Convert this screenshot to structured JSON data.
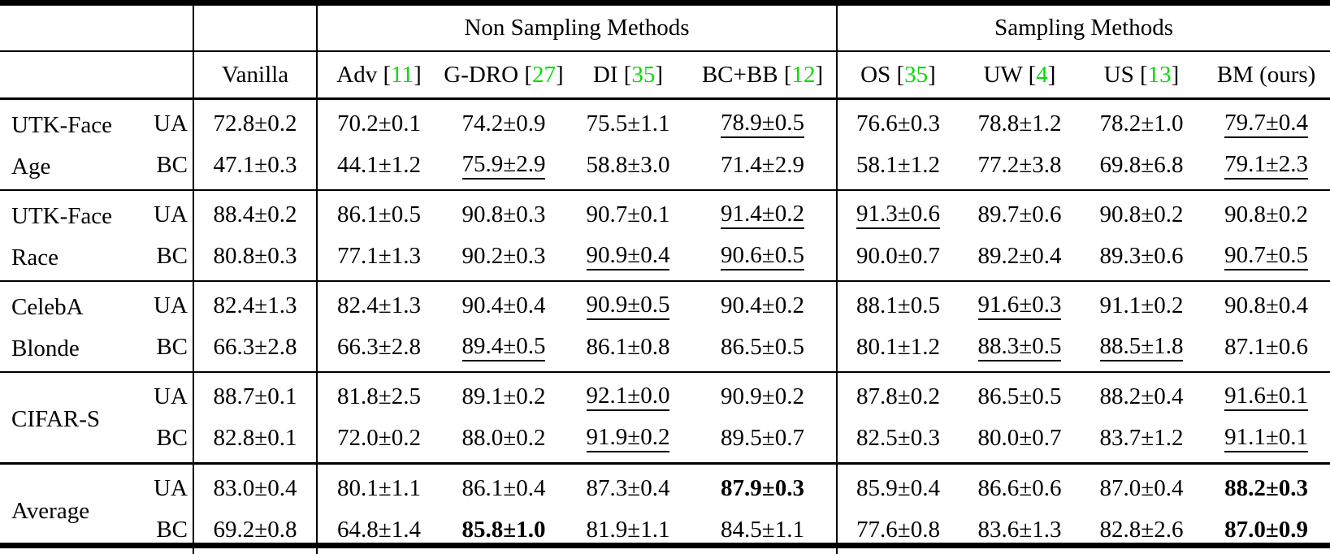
{
  "colors": {
    "citation_green": "#00DD00",
    "text": "#000000",
    "rule": "#000000",
    "background": "#FFFFFF"
  },
  "table": {
    "column_groups": [
      {
        "label": "Non Sampling Methods"
      },
      {
        "label": "Sampling Methods"
      }
    ],
    "metric_note": "flags: u = underlined value, b = bold value",
    "methods": [
      {
        "label": "Vanilla",
        "cite": ""
      },
      {
        "label": "Adv",
        "cite": "11"
      },
      {
        "label": "G-DRO",
        "cite": "27"
      },
      {
        "label": "DI",
        "cite": "35"
      },
      {
        "label": "BC+BB",
        "cite": "12"
      },
      {
        "label": "OS",
        "cite": "35"
      },
      {
        "label": "UW",
        "cite": "4"
      },
      {
        "label": "US",
        "cite": "13"
      },
      {
        "label": "BM (ours)",
        "cite": ""
      }
    ],
    "groups": [
      {
        "label_lines": [
          "UTK-Face",
          "Age"
        ],
        "rows": [
          {
            "metric": "UA",
            "cells": [
              [
                "72.8±0.2",
                ""
              ],
              [
                "70.2±0.1",
                ""
              ],
              [
                "74.2±0.9",
                ""
              ],
              [
                "75.5±1.1",
                ""
              ],
              [
                "78.9±0.5",
                "u"
              ],
              [
                "76.6±0.3",
                ""
              ],
              [
                "78.8±1.2",
                ""
              ],
              [
                "78.2±1.0",
                ""
              ],
              [
                "79.7±0.4",
                "u"
              ]
            ]
          },
          {
            "metric": "BC",
            "cells": [
              [
                "47.1±0.3",
                ""
              ],
              [
                "44.1±1.2",
                ""
              ],
              [
                "75.9±2.9",
                "u"
              ],
              [
                "58.8±3.0",
                ""
              ],
              [
                "71.4±2.9",
                ""
              ],
              [
                "58.1±1.2",
                ""
              ],
              [
                "77.2±3.8",
                ""
              ],
              [
                "69.8±6.8",
                ""
              ],
              [
                "79.1±2.3",
                "u"
              ]
            ]
          }
        ]
      },
      {
        "label_lines": [
          "UTK-Face",
          "Race"
        ],
        "rows": [
          {
            "metric": "UA",
            "cells": [
              [
                "88.4±0.2",
                ""
              ],
              [
                "86.1±0.5",
                ""
              ],
              [
                "90.8±0.3",
                ""
              ],
              [
                "90.7±0.1",
                ""
              ],
              [
                "91.4±0.2",
                "u"
              ],
              [
                "91.3±0.6",
                "u"
              ],
              [
                "89.7±0.6",
                ""
              ],
              [
                "90.8±0.2",
                ""
              ],
              [
                "90.8±0.2",
                ""
              ]
            ]
          },
          {
            "metric": "BC",
            "cells": [
              [
                "80.8±0.3",
                ""
              ],
              [
                "77.1±1.3",
                ""
              ],
              [
                "90.2±0.3",
                ""
              ],
              [
                "90.9±0.4",
                "u"
              ],
              [
                "90.6±0.5",
                "u"
              ],
              [
                "90.0±0.7",
                ""
              ],
              [
                "89.2±0.4",
                ""
              ],
              [
                "89.3±0.6",
                ""
              ],
              [
                "90.7±0.5",
                "u"
              ]
            ]
          }
        ]
      },
      {
        "label_lines": [
          "CelebA",
          "Blonde"
        ],
        "rows": [
          {
            "metric": "UA",
            "cells": [
              [
                "82.4±1.3",
                ""
              ],
              [
                "82.4±1.3",
                ""
              ],
              [
                "90.4±0.4",
                ""
              ],
              [
                "90.9±0.5",
                "u"
              ],
              [
                "90.4±0.2",
                ""
              ],
              [
                "88.1±0.5",
                ""
              ],
              [
                "91.6±0.3",
                "u"
              ],
              [
                "91.1±0.2",
                ""
              ],
              [
                "90.8±0.4",
                ""
              ]
            ]
          },
          {
            "metric": "BC",
            "cells": [
              [
                "66.3±2.8",
                ""
              ],
              [
                "66.3±2.8",
                ""
              ],
              [
                "89.4±0.5",
                "u"
              ],
              [
                "86.1±0.8",
                ""
              ],
              [
                "86.5±0.5",
                ""
              ],
              [
                "80.1±1.2",
                ""
              ],
              [
                "88.3±0.5",
                "u"
              ],
              [
                "88.5±1.8",
                "u"
              ],
              [
                "87.1±0.6",
                ""
              ]
            ]
          }
        ]
      },
      {
        "label_lines": [
          "CIFAR-S"
        ],
        "rows": [
          {
            "metric": "UA",
            "cells": [
              [
                "88.7±0.1",
                ""
              ],
              [
                "81.8±2.5",
                ""
              ],
              [
                "89.1±0.2",
                ""
              ],
              [
                "92.1±0.0",
                "u"
              ],
              [
                "90.9±0.2",
                ""
              ],
              [
                "87.8±0.2",
                ""
              ],
              [
                "86.5±0.5",
                ""
              ],
              [
                "88.2±0.4",
                ""
              ],
              [
                "91.6±0.1",
                "u"
              ]
            ]
          },
          {
            "metric": "BC",
            "cells": [
              [
                "82.8±0.1",
                ""
              ],
              [
                "72.0±0.2",
                ""
              ],
              [
                "88.0±0.2",
                ""
              ],
              [
                "91.9±0.2",
                "u"
              ],
              [
                "89.5±0.7",
                ""
              ],
              [
                "82.5±0.3",
                ""
              ],
              [
                "80.0±0.7",
                ""
              ],
              [
                "83.7±1.2",
                ""
              ],
              [
                "91.1±0.1",
                "u"
              ]
            ]
          }
        ]
      },
      {
        "label_lines": [
          "Average"
        ],
        "rows": [
          {
            "metric": "UA",
            "cells": [
              [
                "83.0±0.4",
                ""
              ],
              [
                "80.1±1.1",
                ""
              ],
              [
                "86.1±0.4",
                ""
              ],
              [
                "87.3±0.4",
                ""
              ],
              [
                "87.9±0.3",
                "b"
              ],
              [
                "85.9±0.4",
                ""
              ],
              [
                "86.6±0.6",
                ""
              ],
              [
                "87.0±0.4",
                ""
              ],
              [
                "88.2±0.3",
                "b"
              ]
            ]
          },
          {
            "metric": "BC",
            "cells": [
              [
                "69.2±0.8",
                ""
              ],
              [
                "64.8±1.4",
                ""
              ],
              [
                "85.8±1.0",
                "b"
              ],
              [
                "81.9±1.1",
                ""
              ],
              [
                "84.5±1.1",
                ""
              ],
              [
                "77.6±0.8",
                ""
              ],
              [
                "83.6±1.3",
                ""
              ],
              [
                "82.8±2.6",
                ""
              ],
              [
                "87.0±0.9",
                "b"
              ]
            ]
          }
        ]
      }
    ]
  }
}
